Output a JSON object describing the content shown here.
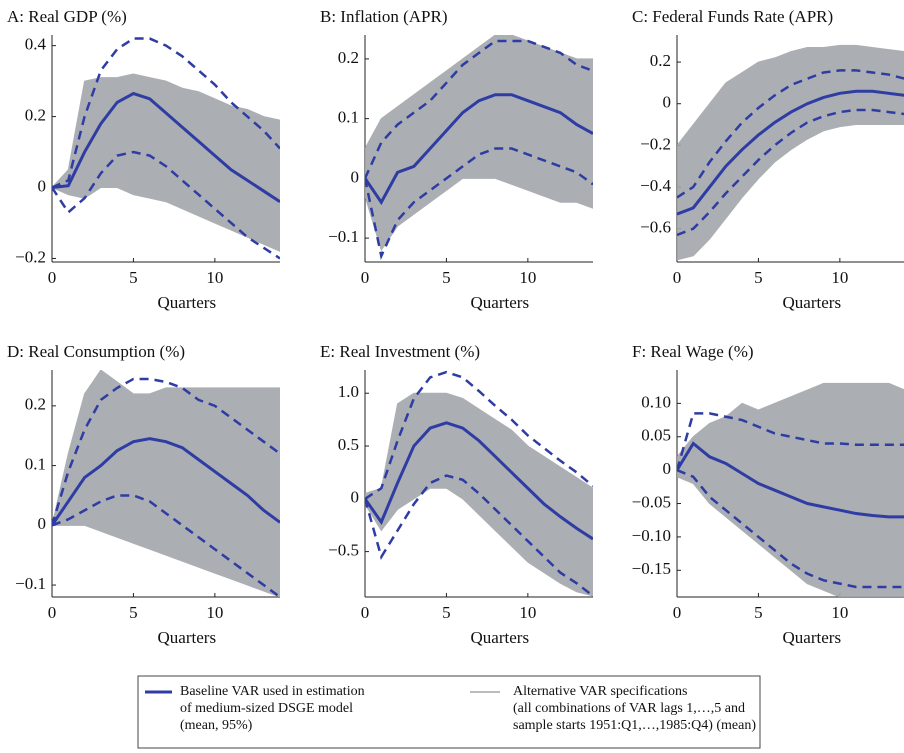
{
  "chart_data": [
    {
      "type": "line",
      "title": "A: Real GDP (%)",
      "xlabel": "Quarters",
      "x": [
        0,
        1,
        2,
        3,
        4,
        5,
        6,
        7,
        8,
        9,
        10,
        11,
        12,
        13,
        14
      ],
      "xlim": [
        0,
        14
      ],
      "xticks": [
        0,
        5,
        10
      ],
      "ylim": [
        -0.21,
        0.43
      ],
      "yticks": [
        {
          "value": -0.2,
          "label": "−0.2"
        },
        0,
        0.2,
        0.4
      ],
      "band": {
        "color": "#a3a7ab",
        "upper": [
          0,
          0.05,
          0.3,
          0.31,
          0.31,
          0.32,
          0.31,
          0.3,
          0.28,
          0.27,
          0.25,
          0.23,
          0.22,
          0.2,
          0.19
        ],
        "lower": [
          0,
          -0.02,
          -0.03,
          0,
          0,
          -0.02,
          -0.03,
          -0.04,
          -0.06,
          -0.08,
          -0.1,
          -0.12,
          -0.14,
          -0.16,
          -0.18
        ]
      },
      "series": [
        {
          "color": "#2e3ca3",
          "dashed": false,
          "values": [
            0,
            0.005,
            0.1,
            0.18,
            0.24,
            0.265,
            0.25,
            0.21,
            0.17,
            0.13,
            0.09,
            0.05,
            0.02,
            -0.01,
            -0.04
          ]
        },
        {
          "color": "#2e3ca3",
          "dashed": true,
          "values": [
            0,
            0.02,
            0.2,
            0.33,
            0.39,
            0.42,
            0.42,
            0.4,
            0.37,
            0.33,
            0.29,
            0.24,
            0.2,
            0.16,
            0.11
          ]
        },
        {
          "color": "#2e3ca3",
          "dashed": true,
          "values": [
            0,
            -0.07,
            -0.03,
            0.04,
            0.09,
            0.1,
            0.09,
            0.06,
            0.02,
            -0.02,
            -0.06,
            -0.1,
            -0.14,
            -0.17,
            -0.2
          ]
        }
      ]
    },
    {
      "type": "line",
      "title": "B: Inflation (APR)",
      "xlabel": "Quarters",
      "x": [
        0,
        1,
        2,
        3,
        4,
        5,
        6,
        7,
        8,
        9,
        10,
        11,
        12,
        13,
        14
      ],
      "xlim": [
        0,
        14
      ],
      "xticks": [
        0,
        5,
        10
      ],
      "ylim": [
        -0.14,
        0.24
      ],
      "yticks": [
        {
          "value": -0.1,
          "label": "−0.1"
        },
        0,
        0.1,
        0.2
      ],
      "band": {
        "color": "#a3a7ab",
        "upper": [
          0.05,
          0.1,
          0.12,
          0.14,
          0.16,
          0.18,
          0.2,
          0.22,
          0.24,
          0.24,
          0.23,
          0.22,
          0.21,
          0.2,
          0.2
        ],
        "lower": [
          -0.03,
          -0.12,
          -0.08,
          -0.06,
          -0.04,
          -0.02,
          0,
          0,
          0,
          -0.01,
          -0.02,
          -0.03,
          -0.04,
          -0.04,
          -0.05
        ]
      },
      "series": [
        {
          "color": "#2e3ca3",
          "dashed": false,
          "values": [
            0,
            -0.04,
            0.01,
            0.02,
            0.05,
            0.08,
            0.11,
            0.13,
            0.14,
            0.14,
            0.13,
            0.12,
            0.11,
            0.09,
            0.075
          ]
        },
        {
          "color": "#2e3ca3",
          "dashed": true,
          "values": [
            0,
            0.06,
            0.09,
            0.11,
            0.13,
            0.16,
            0.19,
            0.21,
            0.23,
            0.23,
            0.23,
            0.22,
            0.21,
            0.19,
            0.18
          ]
        },
        {
          "color": "#2e3ca3",
          "dashed": true,
          "values": [
            0,
            -0.13,
            -0.07,
            -0.04,
            -0.02,
            0,
            0.02,
            0.04,
            0.05,
            0.05,
            0.04,
            0.03,
            0.02,
            0.01,
            -0.01
          ]
        }
      ]
    },
    {
      "type": "line",
      "title": "C: Federal Funds Rate (APR)",
      "xlabel": "Quarters",
      "x": [
        0,
        1,
        2,
        3,
        4,
        5,
        6,
        7,
        8,
        9,
        10,
        11,
        12,
        13,
        14
      ],
      "xlim": [
        0,
        14
      ],
      "xticks": [
        0,
        5,
        10
      ],
      "ylim": [
        -0.76,
        0.33
      ],
      "yticks": [
        {
          "value": -0.6,
          "label": "−0.6"
        },
        {
          "value": -0.4,
          "label": "−0.4"
        },
        {
          "value": -0.2,
          "label": "−0.2"
        },
        0,
        0.2
      ],
      "band": {
        "color": "#a3a7ab",
        "upper": [
          -0.2,
          -0.1,
          0,
          0.1,
          0.15,
          0.2,
          0.22,
          0.25,
          0.27,
          0.27,
          0.28,
          0.28,
          0.27,
          0.26,
          0.25
        ],
        "lower": [
          -0.75,
          -0.73,
          -0.65,
          -0.55,
          -0.45,
          -0.36,
          -0.28,
          -0.22,
          -0.17,
          -0.13,
          -0.11,
          -0.1,
          -0.1,
          -0.1,
          -0.1
        ]
      },
      "series": [
        {
          "color": "#2e3ca3",
          "dashed": false,
          "values": [
            -0.53,
            -0.5,
            -0.4,
            -0.3,
            -0.22,
            -0.15,
            -0.09,
            -0.04,
            0,
            0.03,
            0.05,
            0.06,
            0.06,
            0.05,
            0.04
          ]
        },
        {
          "color": "#2e3ca3",
          "dashed": true,
          "values": [
            -0.45,
            -0.4,
            -0.28,
            -0.18,
            -0.09,
            -0.02,
            0.04,
            0.09,
            0.12,
            0.15,
            0.16,
            0.16,
            0.15,
            0.14,
            0.12
          ]
        },
        {
          "color": "#2e3ca3",
          "dashed": true,
          "values": [
            -0.63,
            -0.6,
            -0.52,
            -0.43,
            -0.35,
            -0.27,
            -0.2,
            -0.14,
            -0.09,
            -0.06,
            -0.04,
            -0.03,
            -0.03,
            -0.04,
            -0.05
          ]
        }
      ]
    },
    {
      "type": "line",
      "title": "D: Real Consumption (%)",
      "xlabel": "Quarters",
      "x": [
        0,
        1,
        2,
        3,
        4,
        5,
        6,
        7,
        8,
        9,
        10,
        11,
        12,
        13,
        14
      ],
      "xlim": [
        0,
        14
      ],
      "xticks": [
        0,
        5,
        10
      ],
      "ylim": [
        -0.12,
        0.26
      ],
      "yticks": [
        {
          "value": -0.1,
          "label": "−0.1"
        },
        0,
        0.1,
        0.2
      ],
      "band": {
        "color": "#a3a7ab",
        "upper": [
          0,
          0.12,
          0.22,
          0.26,
          0.24,
          0.22,
          0.22,
          0.23,
          0.23,
          0.23,
          0.23,
          0.23,
          0.23,
          0.23,
          0.23
        ],
        "lower": [
          0,
          0,
          0,
          -0.01,
          -0.02,
          -0.03,
          -0.04,
          -0.05,
          -0.06,
          -0.07,
          -0.08,
          -0.09,
          -0.1,
          -0.11,
          -0.12
        ]
      },
      "series": [
        {
          "color": "#2e3ca3",
          "dashed": false,
          "values": [
            0,
            0.04,
            0.08,
            0.1,
            0.125,
            0.14,
            0.145,
            0.14,
            0.13,
            0.11,
            0.09,
            0.07,
            0.05,
            0.025,
            0.005
          ]
        },
        {
          "color": "#2e3ca3",
          "dashed": true,
          "values": [
            0,
            0.09,
            0.16,
            0.21,
            0.23,
            0.245,
            0.245,
            0.24,
            0.23,
            0.21,
            0.2,
            0.18,
            0.16,
            0.14,
            0.12
          ]
        },
        {
          "color": "#2e3ca3",
          "dashed": true,
          "values": [
            0,
            0.01,
            0.025,
            0.04,
            0.05,
            0.05,
            0.04,
            0.02,
            0,
            -0.02,
            -0.04,
            -0.06,
            -0.08,
            -0.1,
            -0.12
          ]
        }
      ]
    },
    {
      "type": "line",
      "title": "E: Real Investment (%)",
      "xlabel": "Quarters",
      "x": [
        0,
        1,
        2,
        3,
        4,
        5,
        6,
        7,
        8,
        9,
        10,
        11,
        12,
        13,
        14
      ],
      "xlim": [
        0,
        14
      ],
      "xticks": [
        0,
        5,
        10
      ],
      "ylim": [
        -0.93,
        1.22
      ],
      "yticks": [
        {
          "value": -0.5,
          "label": "−0.5"
        },
        0,
        0.5,
        {
          "value": 1,
          "label": "1.0"
        }
      ],
      "band": {
        "color": "#a3a7ab",
        "upper": [
          0.05,
          0.1,
          0.9,
          1,
          1,
          1,
          0.95,
          0.85,
          0.75,
          0.65,
          0.5,
          0.4,
          0.3,
          0.2,
          0.1
        ],
        "lower": [
          -0.05,
          -0.3,
          -0.1,
          0,
          0.1,
          0.1,
          0,
          -0.15,
          -0.3,
          -0.45,
          -0.6,
          -0.7,
          -0.8,
          -0.88,
          -0.92
        ]
      },
      "series": [
        {
          "color": "#2e3ca3",
          "dashed": false,
          "values": [
            0,
            -0.22,
            0.15,
            0.5,
            0.67,
            0.72,
            0.67,
            0.55,
            0.4,
            0.25,
            0.1,
            -0.05,
            -0.17,
            -0.28,
            -0.38
          ]
        },
        {
          "color": "#2e3ca3",
          "dashed": true,
          "values": [
            0,
            0.1,
            0.55,
            0.95,
            1.15,
            1.2,
            1.15,
            1.02,
            0.88,
            0.75,
            0.6,
            0.48,
            0.36,
            0.25,
            0.12
          ]
        },
        {
          "color": "#2e3ca3",
          "dashed": true,
          "values": [
            0,
            -0.55,
            -0.3,
            -0.05,
            0.15,
            0.22,
            0.18,
            0.05,
            -0.1,
            -0.25,
            -0.4,
            -0.55,
            -0.7,
            -0.8,
            -0.92
          ]
        }
      ]
    },
    {
      "type": "line",
      "title": "F: Real Wage (%)",
      "xlabel": "Quarters",
      "x": [
        0,
        1,
        2,
        3,
        4,
        5,
        6,
        7,
        8,
        9,
        10,
        11,
        12,
        13,
        14
      ],
      "xlim": [
        0,
        14
      ],
      "xticks": [
        0,
        5,
        10
      ],
      "ylim": [
        -0.19,
        0.15
      ],
      "yticks": [
        {
          "value": -0.15,
          "label": "−0.15"
        },
        {
          "value": -0.1,
          "label": "−0.10"
        },
        {
          "value": -0.05,
          "label": "−0.05"
        },
        0,
        0.05,
        {
          "value": 0.1,
          "label": "0.10"
        }
      ],
      "band": {
        "color": "#a3a7ab",
        "upper": [
          0.02,
          0.05,
          0.07,
          0.08,
          0.1,
          0.09,
          0.1,
          0.11,
          0.12,
          0.13,
          0.13,
          0.13,
          0.13,
          0.13,
          0.12
        ],
        "lower": [
          -0.01,
          -0.02,
          -0.05,
          -0.07,
          -0.09,
          -0.11,
          -0.13,
          -0.15,
          -0.17,
          -0.18,
          -0.19,
          -0.19,
          -0.19,
          -0.19,
          -0.19
        ]
      },
      "series": [
        {
          "color": "#2e3ca3",
          "dashed": false,
          "values": [
            0,
            0.04,
            0.02,
            0.01,
            -0.005,
            -0.02,
            -0.03,
            -0.04,
            -0.05,
            -0.055,
            -0.06,
            -0.065,
            -0.068,
            -0.07,
            -0.07
          ]
        },
        {
          "color": "#2e3ca3",
          "dashed": true,
          "values": [
            0,
            0.085,
            0.085,
            0.08,
            0.075,
            0.065,
            0.055,
            0.05,
            0.045,
            0.04,
            0.04,
            0.038,
            0.038,
            0.038,
            0.038
          ]
        },
        {
          "color": "#2e3ca3",
          "dashed": true,
          "values": [
            0,
            -0.01,
            -0.04,
            -0.06,
            -0.08,
            -0.1,
            -0.12,
            -0.14,
            -0.155,
            -0.165,
            -0.17,
            -0.175,
            -0.175,
            -0.175,
            -0.175
          ]
        }
      ]
    }
  ],
  "legend": [
    {
      "color": "#2e3ca3",
      "lines": [
        "Baseline VAR used in estimation",
        "of medium-sized DSGE model",
        "(mean, 95%)"
      ]
    },
    {
      "color": "#a3a7ab",
      "lines": [
        "Alternative VAR specifications",
        "(all combinations of VAR lags 1,…,5 and",
        "sample starts 1951:Q1,…,1985:Q4) (mean)"
      ]
    }
  ]
}
